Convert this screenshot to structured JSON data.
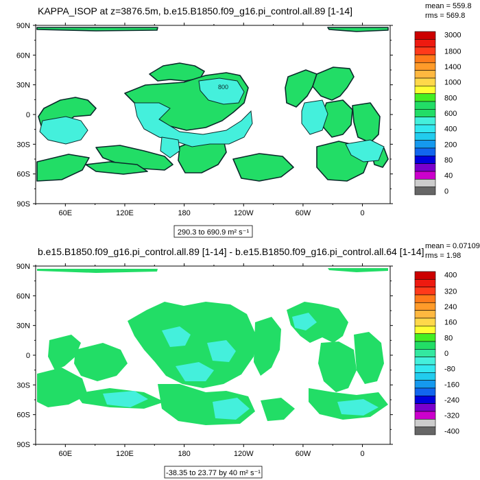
{
  "colors": {
    "land_green": "#22dd66",
    "ocean_cyan": "#44f0dc",
    "outline": "#0a2a2a",
    "bg": "#ffffff"
  },
  "chart_data": [
    {
      "type": "heatmap",
      "title": "KAPPA_ISOP at z=3876.5m, b.e15.B1850.f09_g16.pi_control.all.89 [1-14]",
      "stats": [
        "mean = 559.8",
        "rms = 569.8"
      ],
      "y_ticks": [
        "90N",
        "60N",
        "30N",
        "0",
        "30S",
        "60S",
        "90S"
      ],
      "x_ticks": [
        "60E",
        "120E",
        "180",
        "120W",
        "60W",
        "0"
      ],
      "x_tick_lon": [
        60,
        120,
        180,
        240,
        300,
        360
      ],
      "y_tick_lat": [
        90,
        60,
        30,
        0,
        -30,
        -60,
        -90
      ],
      "lon_range": [
        30,
        388
      ],
      "lat_range": [
        -90,
        90
      ],
      "range_label": "290.3 to 690.9 m² s⁻¹",
      "colorbar_labels": [
        "3000",
        "1800",
        "1400",
        "1000",
        "800",
        "600",
        "400",
        "200",
        "80",
        "40",
        "0"
      ],
      "colorbar_colors": [
        "#cc0000",
        "#ee1a10",
        "#ff3a1a",
        "#ff7a1a",
        "#ff9b2a",
        "#ffb840",
        "#ffd84a",
        "#ffff33",
        "#44ee22",
        "#22dd66",
        "#22dd66",
        "#44f0dc",
        "#33e8f0",
        "#22ccee",
        "#1599ee",
        "#1166ee",
        "#0000dd",
        "#7a00cc",
        "#cc00cc",
        "#cccccc",
        "#666666"
      ],
      "contour_label": "800"
    },
    {
      "type": "heatmap",
      "title": "b.e15.B1850.f09_g16.pi_control.all.89 [1-14] - b.e15.B1850.f09_g16.pi_control.all.64 [1-14]",
      "stats": [
        "mean = 0.07109",
        "rms = 1.98"
      ],
      "y_ticks": [
        "90N",
        "60N",
        "30N",
        "0",
        "30S",
        "60S",
        "90S"
      ],
      "x_ticks": [
        "60E",
        "120E",
        "180",
        "120W",
        "60W",
        "0"
      ],
      "x_tick_lon": [
        60,
        120,
        180,
        240,
        300,
        360
      ],
      "y_tick_lat": [
        90,
        60,
        30,
        0,
        -30,
        -60,
        -90
      ],
      "lon_range": [
        30,
        388
      ],
      "lat_range": [
        -90,
        90
      ],
      "range_label": "-38.35 to 23.77 by 40 m² s⁻¹",
      "colorbar_labels": [
        "400",
        "320",
        "240",
        "160",
        "80",
        "0",
        "-80",
        "-160",
        "-240",
        "-320",
        "-400"
      ],
      "colorbar_colors": [
        "#cc0000",
        "#ee1a10",
        "#ff3a1a",
        "#ff7a1a",
        "#ff9b2a",
        "#ffb840",
        "#ffd84a",
        "#ffff33",
        "#44ee22",
        "#22dd66",
        "#33e8a0",
        "#44f0dc",
        "#33e8f0",
        "#22ccee",
        "#1599ee",
        "#1166ee",
        "#0000dd",
        "#7a00cc",
        "#cc00cc",
        "#cccccc",
        "#666666"
      ]
    }
  ]
}
